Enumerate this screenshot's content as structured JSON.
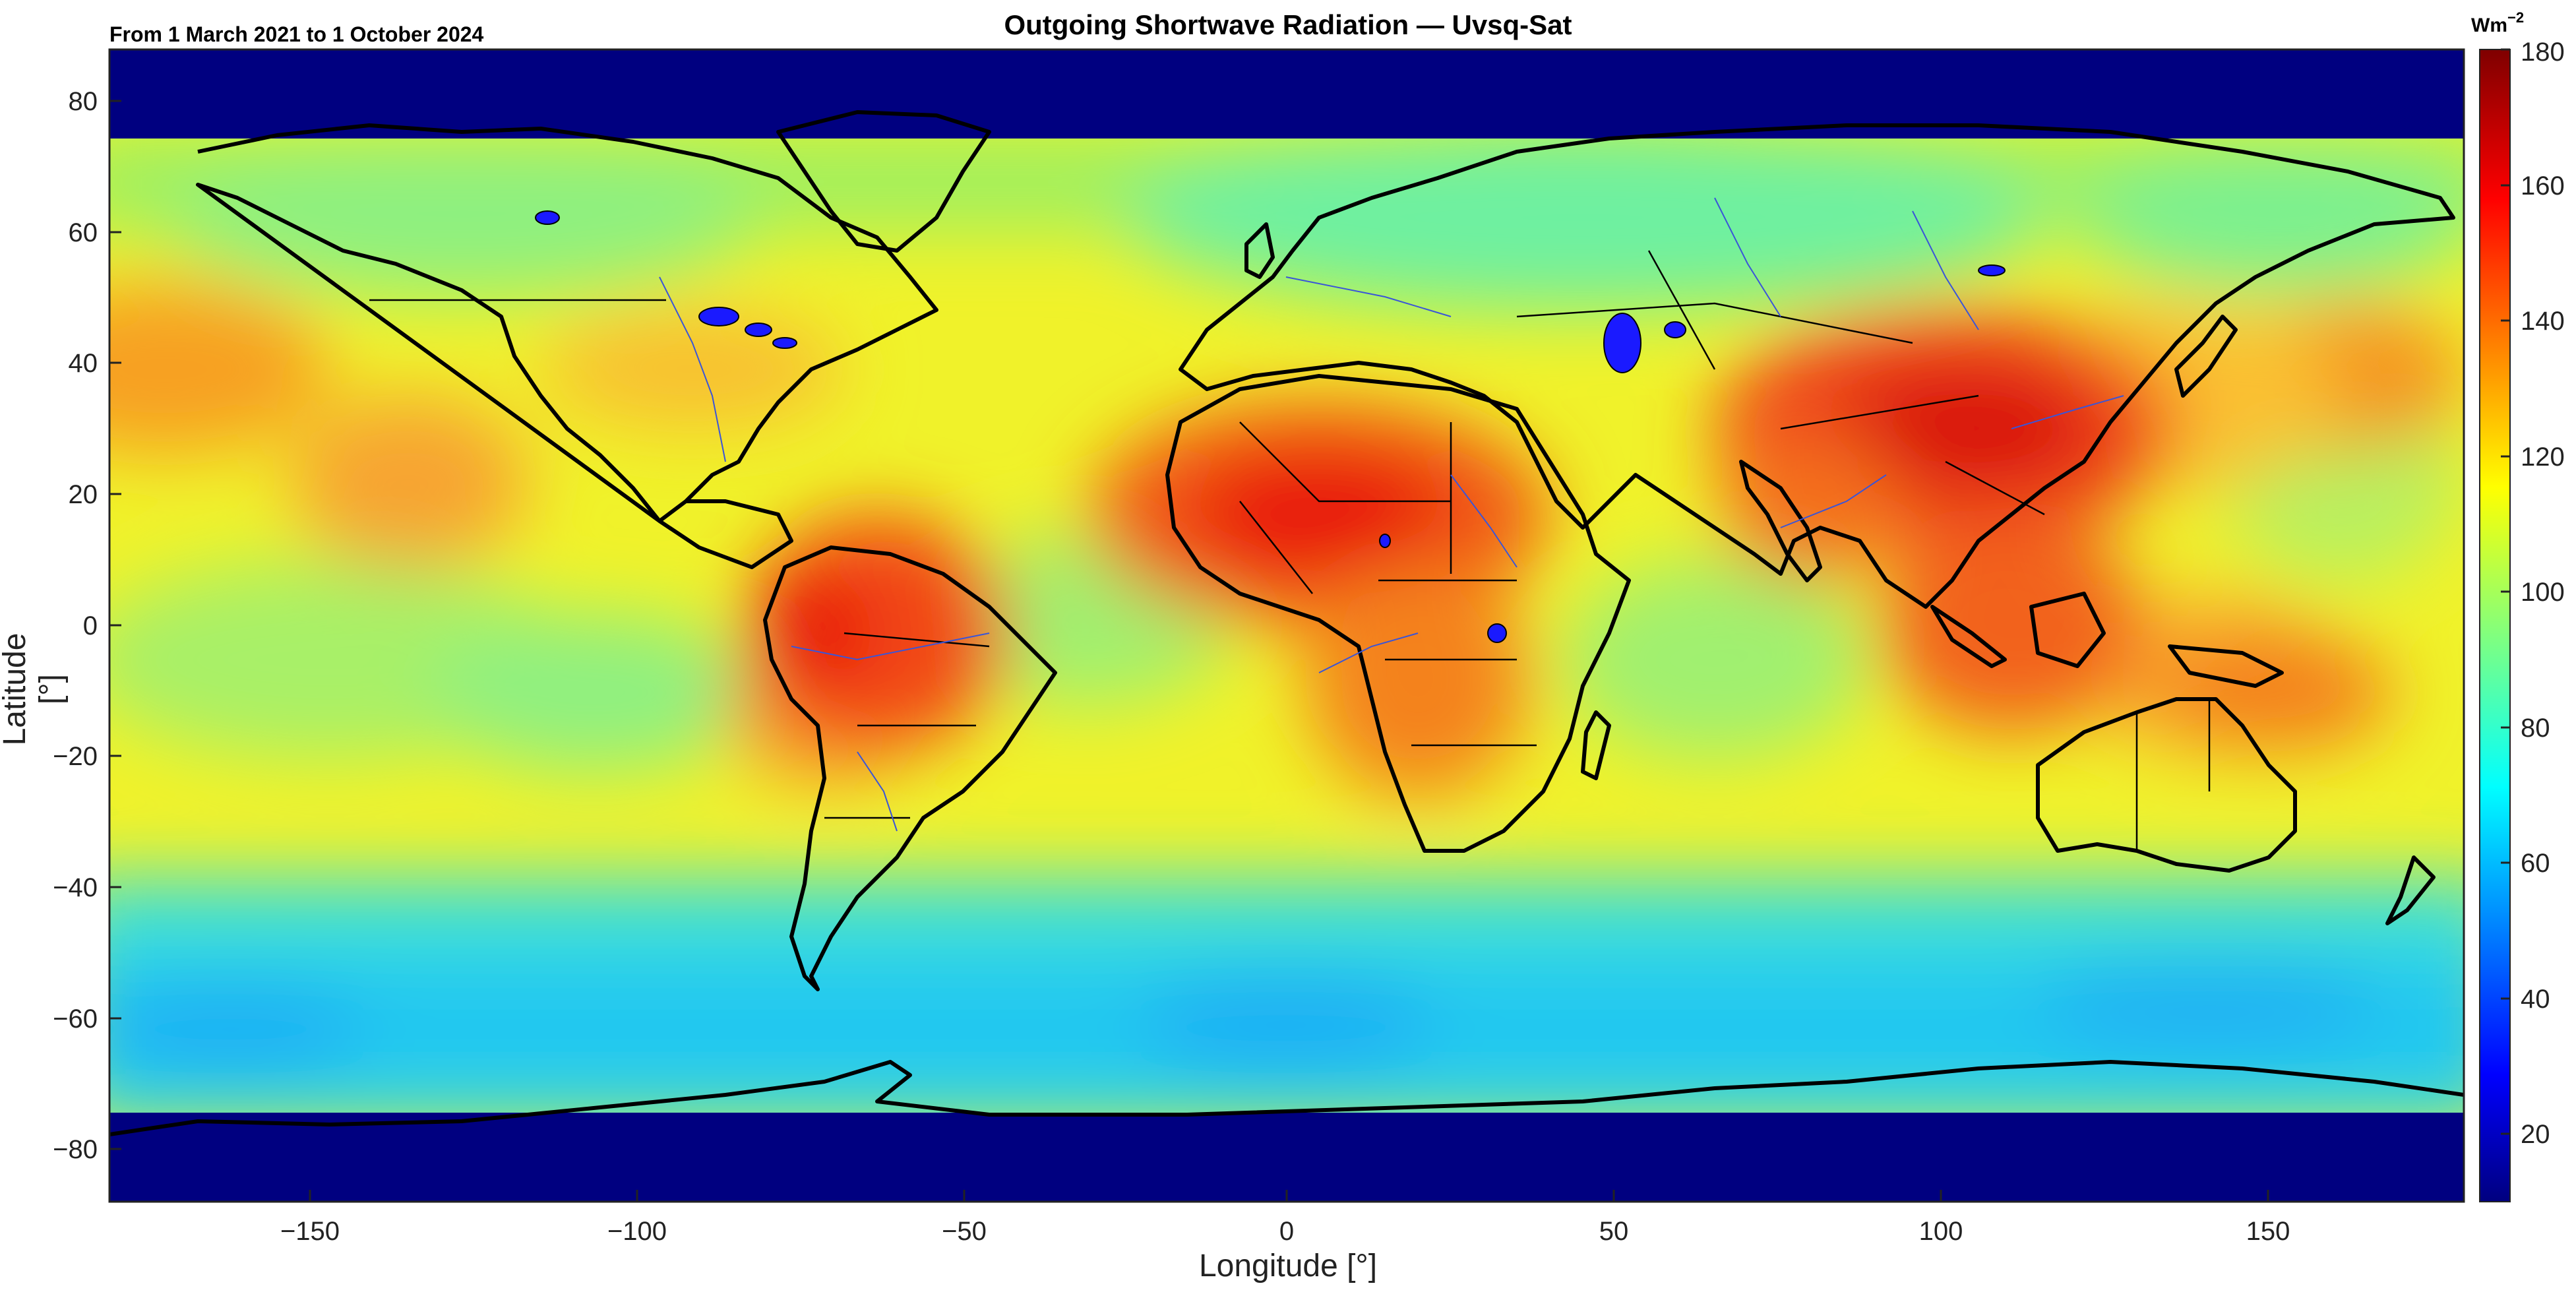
{
  "title": "Outgoing Shortwave Radiation — Uvsq-Sat",
  "subtitle": "From 1 March 2021 to 1 October 2024",
  "colorbar": {
    "unit_base": "Wm",
    "unit_exp": "−2",
    "ticks": [
      "20",
      "40",
      "60",
      "80",
      "100",
      "120",
      "140",
      "160",
      "180"
    ],
    "range": [
      10,
      180
    ],
    "colormap": "jet",
    "colors": [
      "#00007f",
      "#0000ff",
      "#00ffff",
      "#ffff00",
      "#ff0000",
      "#7f0000"
    ]
  },
  "axes": {
    "xlabel": "Longitude [°]",
    "ylabel": "Latitude [°]",
    "xticks": [
      "−150",
      "−100",
      "−50",
      "0",
      "50",
      "100",
      "150"
    ],
    "yticks": [
      "80",
      "60",
      "40",
      "20",
      "0",
      "−20",
      "−40",
      "−60",
      "−80"
    ],
    "xlim": [
      -180,
      180
    ],
    "ylim": [
      -88,
      88
    ]
  },
  "map": {
    "no_data_color": "#000080",
    "no_data_lat_limit": 74,
    "coastline_color": "#000000",
    "rivers_color": "#3a55d8",
    "lakes_color": "#1a1aff"
  }
}
